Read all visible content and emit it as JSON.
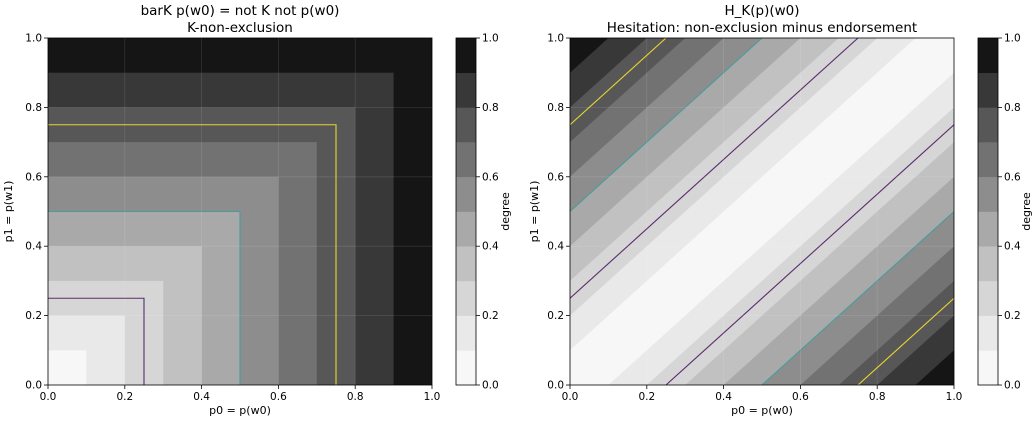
{
  "chart_data": [
    {
      "type": "heatmap",
      "title": "barK p(w0) = not K not p(w0)",
      "subtitle": "K-non-exclusion",
      "xlabel": "p0 = p(w0)",
      "ylabel": "p1 = p(w1)",
      "xlim": [
        0,
        1
      ],
      "ylim": [
        0,
        1
      ],
      "x_ticks": [
        "0.0",
        "0.2",
        "0.4",
        "0.6",
        "0.8",
        "1.0"
      ],
      "y_ticks": [
        "0.0",
        "0.2",
        "0.4",
        "0.6",
        "0.8",
        "1.0"
      ],
      "value_function": "max(p0, p1)",
      "contour_levels": [
        0.1,
        0.2,
        0.3,
        0.4,
        0.5,
        0.6,
        0.7,
        0.8,
        0.9
      ],
      "contour_lines": [
        {
          "level": 0.25,
          "color": "#5c2a6e"
        },
        {
          "level": 0.5,
          "color": "#4a9c9c"
        },
        {
          "level": 0.75,
          "color": "#e8d430"
        }
      ],
      "colorbar": {
        "label": "degree",
        "ticks": [
          "0.0",
          "0.2",
          "0.4",
          "0.6",
          "0.8",
          "1.0"
        ]
      }
    },
    {
      "type": "heatmap",
      "title": "H_K(p)(w0)",
      "subtitle": "Hesitation: non-exclusion minus endorsement",
      "xlabel": "p0 = p(w0)",
      "ylabel": "p1 = p(w1)",
      "xlim": [
        0,
        1
      ],
      "ylim": [
        0,
        1
      ],
      "x_ticks": [
        "0.0",
        "0.2",
        "0.4",
        "0.6",
        "0.8",
        "1.0"
      ],
      "y_ticks": [
        "0.0",
        "0.2",
        "0.4",
        "0.6",
        "0.8",
        "1.0"
      ],
      "value_function": "|p0 - p1|",
      "contour_levels": [
        0.1,
        0.2,
        0.3,
        0.4,
        0.5,
        0.6,
        0.7,
        0.8,
        0.9
      ],
      "contour_lines": [
        {
          "level": 0.25,
          "color": "#5c2a6e"
        },
        {
          "level": 0.5,
          "color": "#4a9c9c"
        },
        {
          "level": 0.75,
          "color": "#e8d430"
        }
      ],
      "colorbar": {
        "label": "degree",
        "ticks": [
          "0.0",
          "0.2",
          "0.4",
          "0.6",
          "0.8",
          "1.0"
        ]
      }
    }
  ],
  "band_colors": [
    "#f7f7f7",
    "#e9e9e9",
    "#d6d6d6",
    "#c1c1c1",
    "#a9a9a9",
    "#8d8d8d",
    "#727272",
    "#575757",
    "#383838",
    "#151515"
  ]
}
